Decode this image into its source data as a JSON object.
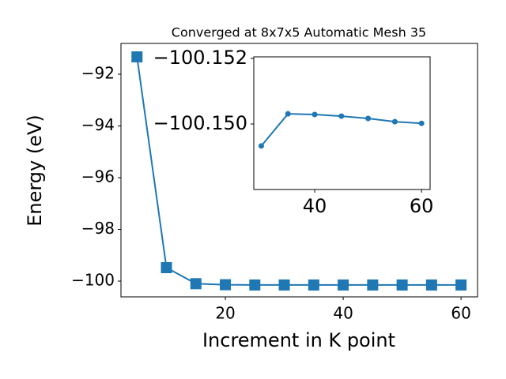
{
  "chart_data": [
    {
      "type": "line",
      "title": "Converged at 8x7x5 Automatic Mesh 35",
      "xlabel": "Increment in K point",
      "ylabel": "Energy (eV)",
      "marker": "square",
      "series": [
        {
          "color": "#1f77b4",
          "x": [
            5,
            10,
            15,
            20,
            25,
            30,
            35,
            40,
            45,
            50,
            55,
            60
          ],
          "values": [
            -91.33,
            -99.48,
            -100.1,
            -100.14,
            -100.15,
            -100.15,
            -100.15,
            -100.15,
            -100.15,
            -100.15,
            -100.15,
            -100.15
          ]
        }
      ],
      "xlim": [
        2.28,
        62.8
      ],
      "xticks": [
        20,
        40,
        60
      ],
      "ylim": [
        -100.61,
        -90.81
      ],
      "yticks": [
        {
          "value": -100,
          "label": "−100"
        },
        {
          "value": -98,
          "label": "−98"
        },
        {
          "value": -96,
          "label": "−96"
        },
        {
          "value": -94,
          "label": "−94"
        },
        {
          "value": -92,
          "label": "−92"
        }
      ]
    },
    {
      "type": "line",
      "marker": "circle",
      "series": [
        {
          "color": "#1f77b4",
          "x": [
            30,
            35,
            40,
            45,
            50,
            55,
            60
          ],
          "values": [
            -100.14933,
            -100.15031,
            -100.15029,
            -100.15024,
            -100.15017,
            -100.15007,
            -100.15002
          ]
        }
      ],
      "xlim": [
        28.6,
        61.6
      ],
      "xticks": [
        40,
        60
      ],
      "ylim": [
        -100.148,
        -100.15205
      ],
      "yticks": [
        {
          "value": -100.15,
          "label": "−100.150"
        },
        {
          "value": -100.152,
          "label": "−100.152"
        }
      ]
    }
  ]
}
